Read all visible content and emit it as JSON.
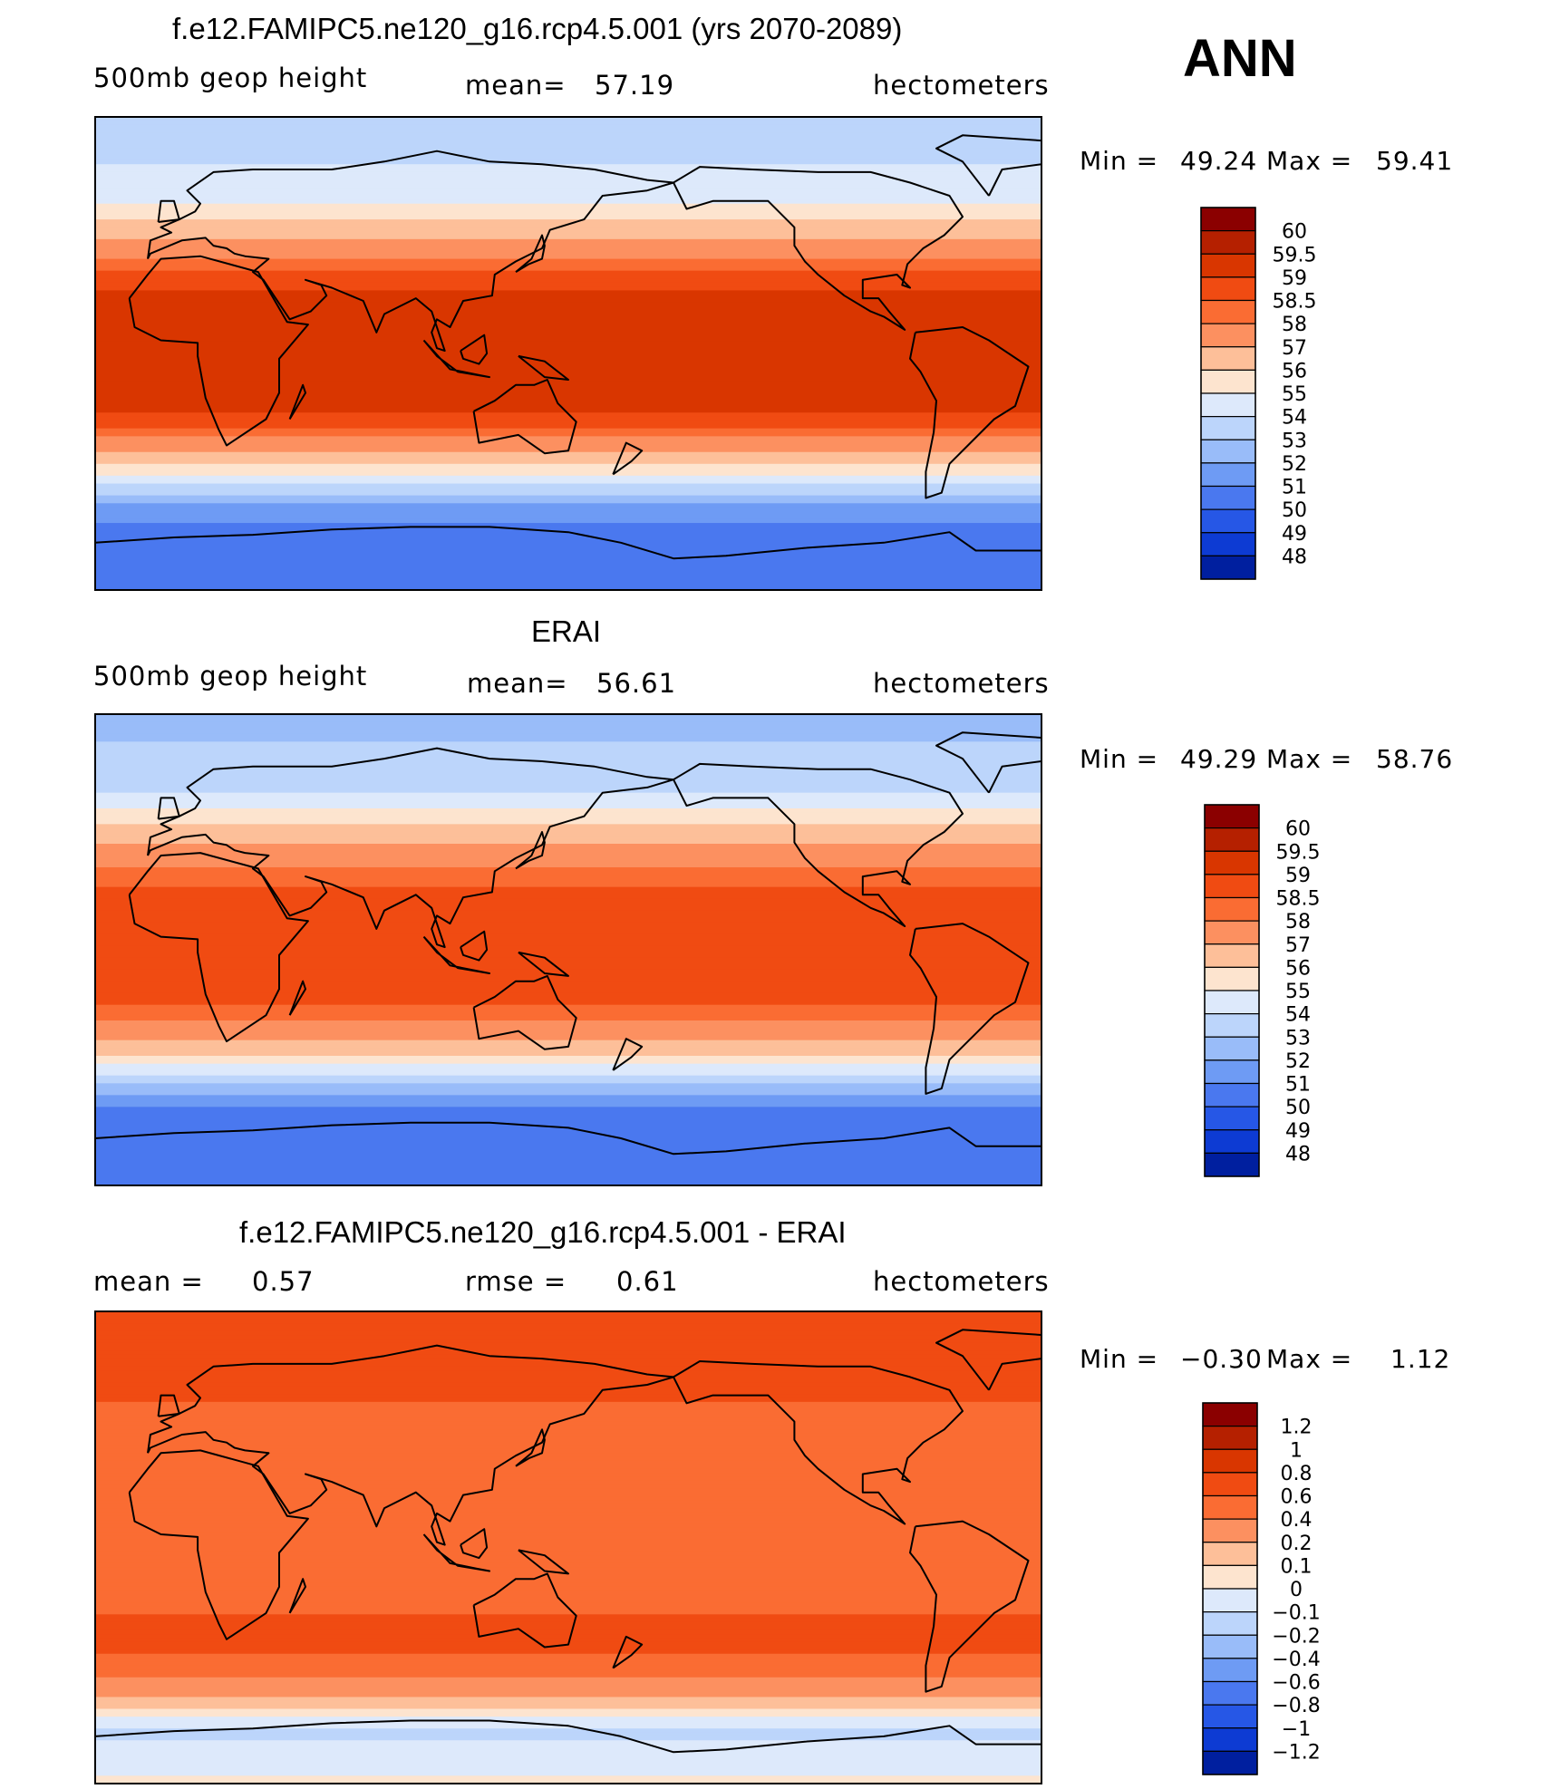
{
  "season": "ANN",
  "units": "hectometers",
  "variable": "500mb geop height",
  "chart_data": [
    {
      "type": "heatmap",
      "title": "f.e12.FAMIPC5.ne120_g16.rcp4.5.001 (yrs 2070-2089)",
      "variable": "500mb geop height",
      "mean_label": "mean=",
      "mean": "57.19",
      "units": "hectometers",
      "min_label": "Min =",
      "min": "49.24",
      "max_label": "Max =",
      "max": "59.41",
      "levels": [
        "60",
        "59.5",
        "59",
        "58.5",
        "58",
        "57",
        "56",
        "55",
        "54",
        "53",
        "52",
        "51",
        "50",
        "49",
        "48"
      ],
      "colors": [
        "#8b0000",
        "#b52000",
        "#d93600",
        "#f04b12",
        "#fa6c33",
        "#fc9060",
        "#fdbf99",
        "#fde4cf",
        "#dde9fb",
        "#bcd5fb",
        "#99bcf9",
        "#6e9bf4",
        "#4a78ef",
        "#2657e6",
        "#0d3bd3",
        "#001f9f"
      ],
      "profile_by_latitude": [
        {
          "lat": 90,
          "value": 53.2
        },
        {
          "lat": 75,
          "value": 53.8
        },
        {
          "lat": 60,
          "value": 54.6
        },
        {
          "lat": 50,
          "value": 56.2
        },
        {
          "lat": 40,
          "value": 57.5
        },
        {
          "lat": 30,
          "value": 58.7
        },
        {
          "lat": 20,
          "value": 59.2
        },
        {
          "lat": 0,
          "value": 59.3
        },
        {
          "lat": -20,
          "value": 59.2
        },
        {
          "lat": -30,
          "value": 58.4
        },
        {
          "lat": -40,
          "value": 56.6
        },
        {
          "lat": -50,
          "value": 54.0
        },
        {
          "lat": -60,
          "value": 51.4
        },
        {
          "lat": -70,
          "value": 50.4
        },
        {
          "lat": -90,
          "value": 50.2
        }
      ]
    },
    {
      "type": "heatmap",
      "title": "ERAI",
      "variable": "500mb geop height",
      "mean_label": "mean=",
      "mean": "56.61",
      "units": "hectometers",
      "min_label": "Min =",
      "min": "49.29",
      "max_label": "Max =",
      "max": "58.76",
      "levels": [
        "60",
        "59.5",
        "59",
        "58.5",
        "58",
        "57",
        "56",
        "55",
        "54",
        "53",
        "52",
        "51",
        "50",
        "49",
        "48"
      ],
      "colors": [
        "#8b0000",
        "#b52000",
        "#d93600",
        "#f04b12",
        "#fa6c33",
        "#fc9060",
        "#fdbf99",
        "#fde4cf",
        "#dde9fb",
        "#bcd5fb",
        "#99bcf9",
        "#6e9bf4",
        "#4a78ef",
        "#2657e6",
        "#0d3bd3",
        "#001f9f"
      ],
      "profile_by_latitude": [
        {
          "lat": 90,
          "value": 52.6
        },
        {
          "lat": 75,
          "value": 53.2
        },
        {
          "lat": 60,
          "value": 54.0
        },
        {
          "lat": 50,
          "value": 55.6
        },
        {
          "lat": 40,
          "value": 57.1
        },
        {
          "lat": 30,
          "value": 58.2
        },
        {
          "lat": 20,
          "value": 58.7
        },
        {
          "lat": 0,
          "value": 58.7
        },
        {
          "lat": -20,
          "value": 58.6
        },
        {
          "lat": -30,
          "value": 57.8
        },
        {
          "lat": -40,
          "value": 56.0
        },
        {
          "lat": -50,
          "value": 53.4
        },
        {
          "lat": -60,
          "value": 51.0
        },
        {
          "lat": -70,
          "value": 50.3
        },
        {
          "lat": -90,
          "value": 50.1
        }
      ]
    },
    {
      "type": "heatmap",
      "title": "f.e12.FAMIPC5.ne120_g16.rcp4.5.001 - ERAI",
      "mean_label": "mean =",
      "mean": "0.57",
      "rmse_label": "rmse =",
      "rmse": "0.61",
      "units": "hectometers",
      "min_label": "Min =",
      "min": "−0.30",
      "max_label": "Max =",
      "max": "1.12",
      "levels": [
        "1.2",
        "1",
        "0.8",
        "0.6",
        "0.4",
        "0.2",
        "0.1",
        "0",
        "−0.1",
        "−0.2",
        "−0.4",
        "−0.6",
        "−0.8",
        "−1",
        "−1.2"
      ],
      "colors": [
        "#8b0000",
        "#b52000",
        "#d93600",
        "#f04b12",
        "#fa6c33",
        "#fc9060",
        "#fdbf99",
        "#fde4cf",
        "#dde9fb",
        "#bcd5fb",
        "#99bcf9",
        "#6e9bf4",
        "#4a78ef",
        "#2657e6",
        "#0d3bd3",
        "#001f9f"
      ],
      "profile_by_latitude": [
        {
          "lat": 90,
          "value": 0.72
        },
        {
          "lat": 75,
          "value": 0.66
        },
        {
          "lat": 60,
          "value": 0.62
        },
        {
          "lat": 50,
          "value": 0.58
        },
        {
          "lat": 40,
          "value": 0.52
        },
        {
          "lat": 30,
          "value": 0.48
        },
        {
          "lat": 0,
          "value": 0.5
        },
        {
          "lat": -20,
          "value": 0.56
        },
        {
          "lat": -35,
          "value": 0.66
        },
        {
          "lat": -45,
          "value": 0.55
        },
        {
          "lat": -55,
          "value": 0.25
        },
        {
          "lat": -62,
          "value": 0.08
        },
        {
          "lat": -70,
          "value": -0.12
        },
        {
          "lat": -80,
          "value": -0.05
        },
        {
          "lat": -90,
          "value": 0.02
        }
      ]
    }
  ]
}
